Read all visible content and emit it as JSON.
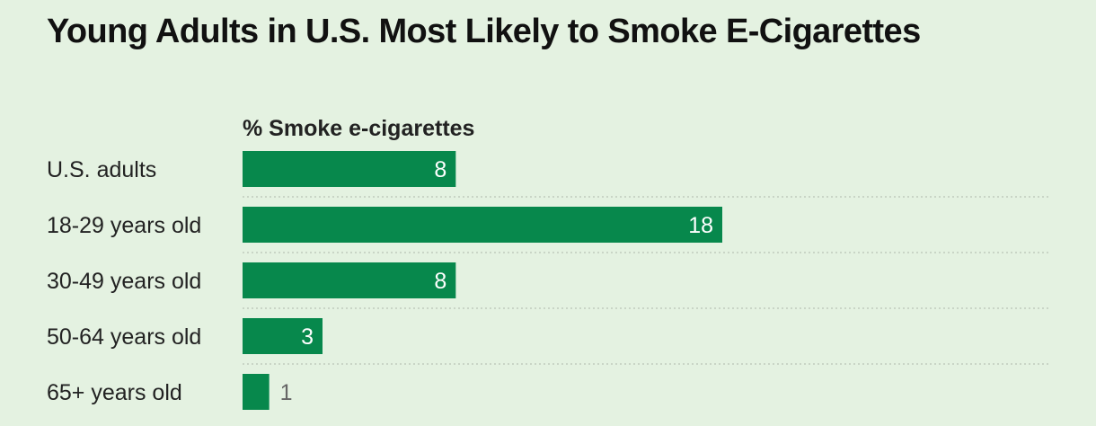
{
  "chart_data": {
    "type": "bar",
    "orientation": "horizontal",
    "title": "Young Adults in U.S. Most Likely to Smoke E-Cigarettes",
    "column_header": "% Smoke e-cigarettes",
    "categories": [
      "U.S. adults",
      "18-29 years old",
      "30-49 years old",
      "50-64 years old",
      "65+ years old"
    ],
    "values": [
      8,
      18,
      8,
      3,
      1
    ],
    "xlim": [
      0,
      18
    ],
    "grid": false,
    "bar_color": "#07884c",
    "value_label_inside_color": "#ffffff",
    "value_label_outside_color": "#666666",
    "separator_color": "#b9c4b7"
  }
}
